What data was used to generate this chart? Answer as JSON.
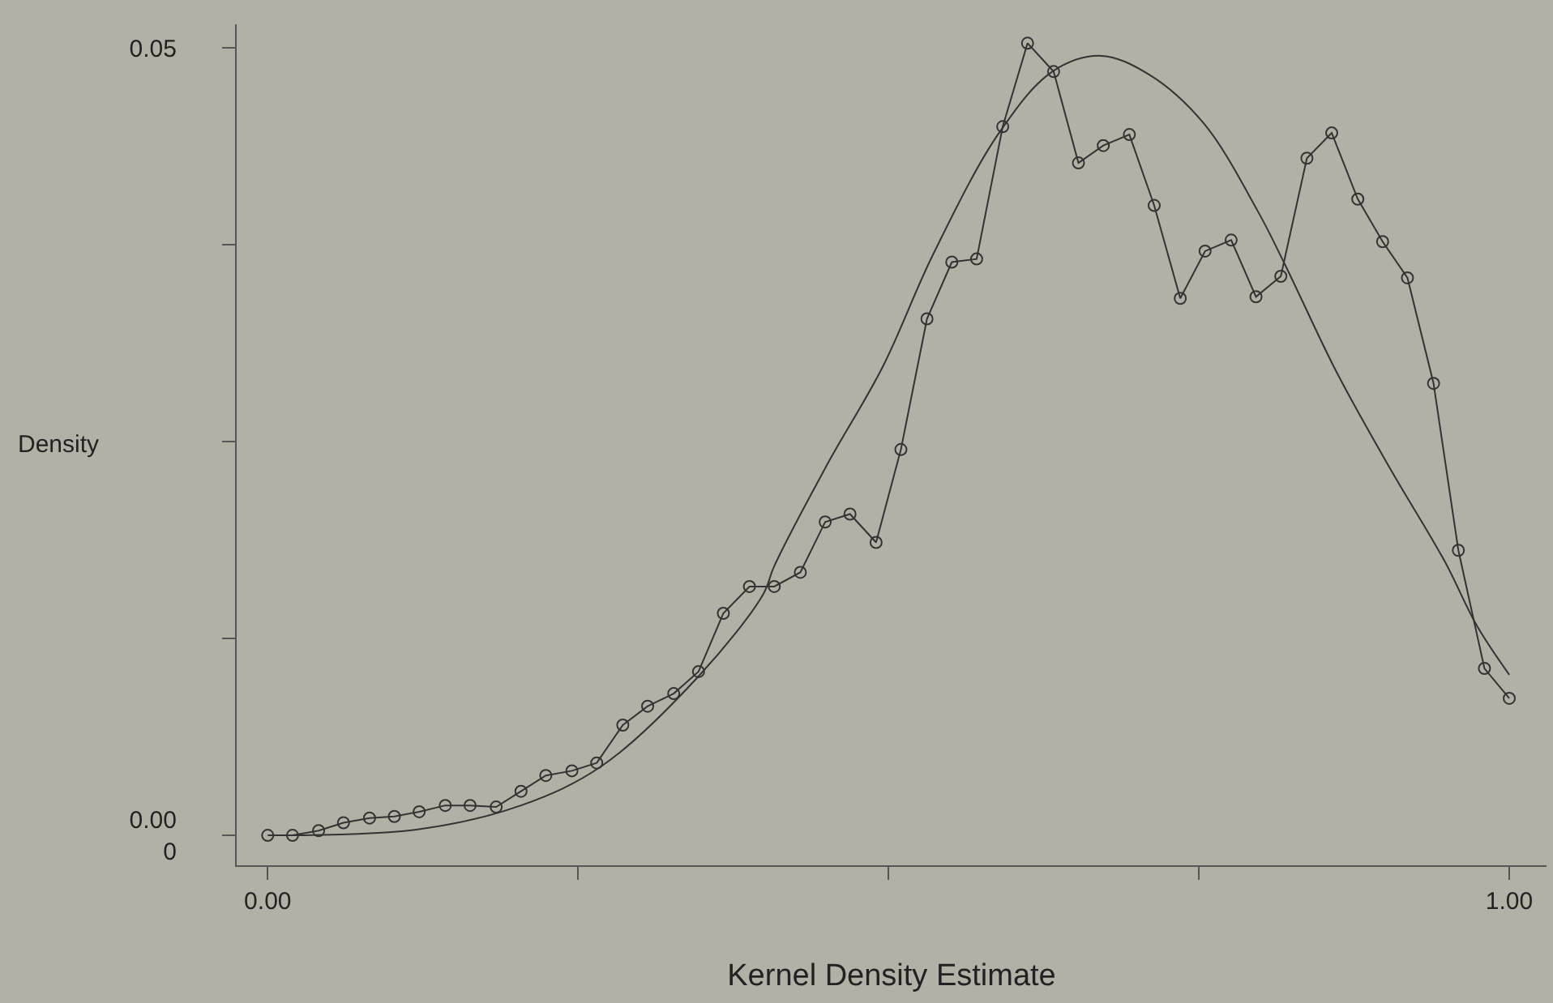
{
  "chart_data": {
    "type": "line",
    "xlabel": "Kernel Density Estimate",
    "ylabel": "Density",
    "xlim": [
      -0.025,
      1.03
    ],
    "ylim": [
      -0.0019,
      0.0515
    ],
    "xticks": [
      {
        "value": 0,
        "label": "0.00"
      },
      {
        "value": 0.25,
        "label": null
      },
      {
        "value": 0.5,
        "label": null
      },
      {
        "value": 0.75,
        "label": null
      },
      {
        "value": 1,
        "label": "1.00"
      }
    ],
    "yticks": [
      {
        "value": 0,
        "label": "0.000"
      },
      {
        "value": 0.0125,
        "label": null
      },
      {
        "value": 0.025,
        "label": null
      },
      {
        "value": 0.0375,
        "label": null
      },
      {
        "value": 0.05,
        "label": "0.05"
      }
    ],
    "grid": false,
    "legend": false,
    "series": [
      {
        "marker": "circle",
        "color": "#333333",
        "x": [
          0.0,
          0.02,
          0.041,
          0.061,
          0.082,
          0.102,
          0.122,
          0.143,
          0.163,
          0.184,
          0.204,
          0.224,
          0.245,
          0.265,
          0.286,
          0.306,
          0.327,
          0.347,
          0.367,
          0.388,
          0.408,
          0.429,
          0.449,
          0.469,
          0.49,
          0.51,
          0.531,
          0.551,
          0.571,
          0.592,
          0.612,
          0.633,
          0.653,
          0.673,
          0.694,
          0.714,
          0.735,
          0.755,
          0.776,
          0.796,
          0.816,
          0.837,
          0.857,
          0.878,
          0.898,
          0.918,
          0.939,
          0.959,
          0.98,
          1.0
        ],
        "values": [
          0.0,
          0.0,
          0.0003,
          0.0008,
          0.0011,
          0.0012,
          0.0015,
          0.0019,
          0.0019,
          0.0018,
          0.0028,
          0.0038,
          0.0041,
          0.0046,
          0.007,
          0.0082,
          0.009,
          0.0104,
          0.0141,
          0.0158,
          0.0158,
          0.0167,
          0.0199,
          0.0204,
          0.0186,
          0.0245,
          0.0328,
          0.0364,
          0.0366,
          0.045,
          0.0503,
          0.0485,
          0.0427,
          0.0438,
          0.0445,
          0.04,
          0.0341,
          0.0371,
          0.0378,
          0.0342,
          0.0355,
          0.043,
          0.0446,
          0.0404,
          0.0377,
          0.0354,
          0.0287,
          0.0181,
          0.0106,
          0.0087
        ]
      },
      {
        "marker": "none",
        "color": "#333333",
        "x": [
          0.01,
          0.123,
          0.204,
          0.269,
          0.347,
          0.399,
          0.408,
          0.451,
          0.495,
          0.536,
          0.589,
          0.632,
          0.671,
          0.71,
          0.754,
          0.797,
          0.819,
          0.861,
          0.904,
          0.948,
          0.974,
          1.0
        ],
        "values": [
          0.0,
          0.0004,
          0.0019,
          0.0044,
          0.0101,
          0.0153,
          0.0171,
          0.0236,
          0.0297,
          0.0369,
          0.0446,
          0.0485,
          0.0495,
          0.0483,
          0.0452,
          0.0397,
          0.0363,
          0.0294,
          0.0233,
          0.0174,
          0.0133,
          0.0102
        ]
      }
    ]
  }
}
